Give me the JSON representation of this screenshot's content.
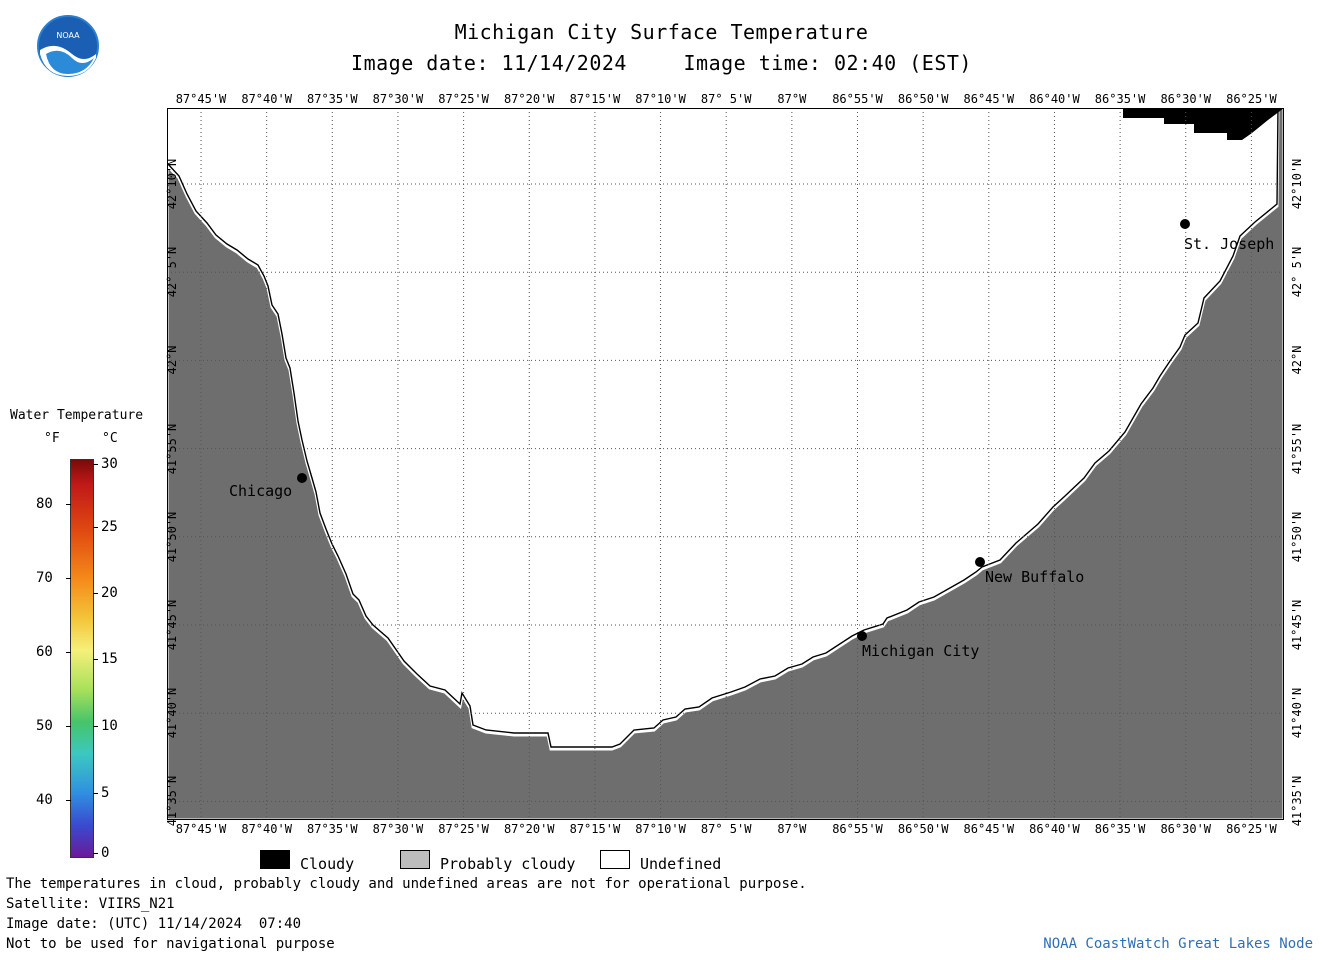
{
  "title": "Michigan City Surface Temperature",
  "image_date_label": "Image date: 11/14/2024",
  "image_time_label": "Image time: 02:40 (EST)",
  "logo_text": "NOAA",
  "map": {
    "lon_ticks": [
      "87°45'W",
      "87°40'W",
      "87°35'W",
      "87°30'W",
      "87°25'W",
      "87°20'W",
      "87°15'W",
      "87°10'W",
      "87° 5'W",
      "87°W",
      "86°55'W",
      "86°50'W",
      "86°45'W",
      "86°40'W",
      "86°35'W",
      "86°30'W",
      "86°25'W"
    ],
    "lat_ticks": [
      "42°10'N",
      "42° 5'N",
      "42°N",
      "41°55'N",
      "41°50'N",
      "41°45'N",
      "41°40'N",
      "41°35'N"
    ],
    "cities": [
      {
        "name": "Chicago"
      },
      {
        "name": "Michigan City"
      },
      {
        "name": "New Buffalo"
      },
      {
        "name": "St. Joseph"
      }
    ],
    "colors": {
      "land": "#6e6e6e",
      "cloudy": "#000000",
      "undefined": "#ffffff",
      "grid": "#555555"
    }
  },
  "colorbar": {
    "title": "Water Temperature",
    "unit_f": "°F",
    "unit_c": "°C",
    "f_ticks": [
      "80",
      "70",
      "60",
      "50",
      "40"
    ],
    "c_ticks": [
      "30",
      "25",
      "20",
      "15",
      "10",
      "5",
      "0"
    ]
  },
  "legend": {
    "cloudy": "Cloudy",
    "probably_cloudy": "Probably cloudy",
    "undefined": "Undefined",
    "colors": {
      "cloudy": "#000000",
      "probably_cloudy": "#bdbdbd",
      "undefined": "#ffffff"
    }
  },
  "footer": {
    "line1": "The temperatures in cloud, probably cloudy and undefined areas are not for operational purpose.",
    "line2": "Satellite: VIIRS_N21",
    "line3": "Image date: (UTC) 11/14/2024  07:40",
    "line4": "Not to be used for navigational purpose",
    "credit": "NOAA CoastWatch Great Lakes Node"
  }
}
